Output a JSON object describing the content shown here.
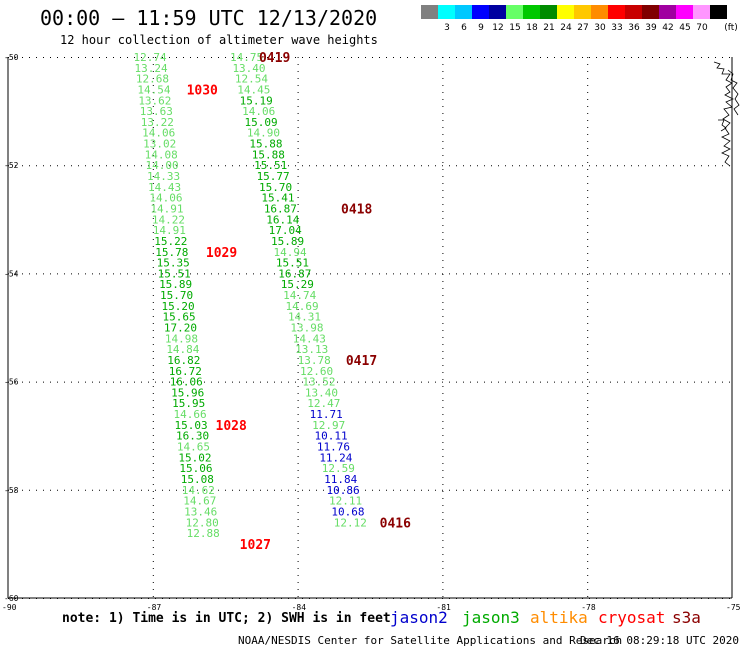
{
  "header": {
    "title": "00:00 – 11:59 UTC 12/13/2020",
    "subtitle": "12 hour collection of altimeter wave heights"
  },
  "color_scale": {
    "unit": "(ft)",
    "entries": [
      {
        "label": "",
        "color": "#808080"
      },
      {
        "label": "3",
        "color": "#00ffff"
      },
      {
        "label": "6",
        "color": "#00c8ff"
      },
      {
        "label": "9",
        "color": "#0000ff"
      },
      {
        "label": "12",
        "color": "#0000a0"
      },
      {
        "label": "15",
        "color": "#66ff66"
      },
      {
        "label": "18",
        "color": "#00c800"
      },
      {
        "label": "21",
        "color": "#008c00"
      },
      {
        "label": "24",
        "color": "#ffff00"
      },
      {
        "label": "27",
        "color": "#ffc800"
      },
      {
        "label": "30",
        "color": "#ff8c00"
      },
      {
        "label": "33",
        "color": "#ff0000"
      },
      {
        "label": "36",
        "color": "#c80000"
      },
      {
        "label": "39",
        "color": "#800000"
      },
      {
        "label": "42",
        "color": "#a000a0"
      },
      {
        "label": "45",
        "color": "#ff00ff"
      },
      {
        "label": "70",
        "color": "#ff96ff"
      },
      {
        "label": "",
        "color": "#000000"
      }
    ]
  },
  "axes": {
    "lat_labels": [
      "-50",
      "-52",
      "-54",
      "-56",
      "-58",
      "-60"
    ],
    "lon_labels": [
      "-90",
      "-87",
      "-84",
      "-81",
      "-78",
      "-75"
    ]
  },
  "colors": {
    "light_green": "#66dd66",
    "green": "#00aa00",
    "blue": "#0000cc",
    "red": "#ff0000",
    "dark_red": "#8b0000",
    "orange": "#ff8c00",
    "black": "#000000"
  },
  "tracks": [
    {
      "name": "track-1030",
      "points": [
        {
          "lon": -87.4,
          "lat": -50.0,
          "v": "12.74",
          "c": "light_green"
        },
        {
          "lon": -87.38,
          "lat": -50.2,
          "v": "13.24",
          "c": "light_green"
        },
        {
          "lon": -87.35,
          "lat": -50.4,
          "v": "12.68",
          "c": "light_green"
        },
        {
          "lon": -87.32,
          "lat": -50.6,
          "v": "14.54",
          "c": "light_green"
        },
        {
          "lon": -87.3,
          "lat": -50.8,
          "v": "13.62",
          "c": "light_green"
        },
        {
          "lon": -87.27,
          "lat": -51.0,
          "v": "13.63",
          "c": "light_green"
        },
        {
          "lon": -87.25,
          "lat": -51.2,
          "v": "13.22",
          "c": "light_green"
        },
        {
          "lon": -87.22,
          "lat": -51.4,
          "v": "14.06",
          "c": "light_green"
        },
        {
          "lon": -87.2,
          "lat": -51.6,
          "v": "13.02",
          "c": "light_green"
        },
        {
          "lon": -87.17,
          "lat": -51.8,
          "v": "14.08",
          "c": "light_green"
        },
        {
          "lon": -87.15,
          "lat": -52.0,
          "v": "14.00",
          "c": "light_green"
        },
        {
          "lon": -87.12,
          "lat": -52.2,
          "v": "14.33",
          "c": "light_green"
        },
        {
          "lon": -87.1,
          "lat": -52.4,
          "v": "14.43",
          "c": "light_green"
        },
        {
          "lon": -87.07,
          "lat": -52.6,
          "v": "14.06",
          "c": "light_green"
        },
        {
          "lon": -87.05,
          "lat": -52.8,
          "v": "14.91",
          "c": "light_green"
        },
        {
          "lon": -87.02,
          "lat": -53.0,
          "v": "14.22",
          "c": "light_green"
        },
        {
          "lon": -87.0,
          "lat": -53.2,
          "v": "14.91",
          "c": "light_green"
        },
        {
          "lon": -86.97,
          "lat": -53.4,
          "v": "15.22",
          "c": "green"
        },
        {
          "lon": -86.95,
          "lat": -53.6,
          "v": "15.78",
          "c": "green"
        },
        {
          "lon": -86.92,
          "lat": -53.8,
          "v": "15.35",
          "c": "green"
        },
        {
          "lon": -86.9,
          "lat": -54.0,
          "v": "15.51",
          "c": "green"
        },
        {
          "lon": -86.87,
          "lat": -54.2,
          "v": "15.89",
          "c": "green"
        },
        {
          "lon": -86.85,
          "lat": -54.4,
          "v": "15.70",
          "c": "green"
        },
        {
          "lon": -86.82,
          "lat": -54.6,
          "v": "15.20",
          "c": "green"
        },
        {
          "lon": -86.8,
          "lat": -54.8,
          "v": "15.65",
          "c": "green"
        },
        {
          "lon": -86.77,
          "lat": -55.0,
          "v": "17.20",
          "c": "green"
        },
        {
          "lon": -86.75,
          "lat": -55.2,
          "v": "14.98",
          "c": "light_green"
        },
        {
          "lon": -86.72,
          "lat": -55.4,
          "v": "14.84",
          "c": "light_green"
        },
        {
          "lon": -86.7,
          "lat": -55.6,
          "v": "16.82",
          "c": "green"
        },
        {
          "lon": -86.67,
          "lat": -55.8,
          "v": "16.72",
          "c": "green"
        },
        {
          "lon": -86.65,
          "lat": -56.0,
          "v": "16.06",
          "c": "green"
        },
        {
          "lon": -86.62,
          "lat": -56.2,
          "v": "15.96",
          "c": "green"
        },
        {
          "lon": -86.6,
          "lat": -56.4,
          "v": "15.95",
          "c": "green"
        },
        {
          "lon": -86.57,
          "lat": -56.6,
          "v": "14.66",
          "c": "light_green"
        },
        {
          "lon": -86.55,
          "lat": -56.8,
          "v": "15.03",
          "c": "green"
        },
        {
          "lon": -86.52,
          "lat": -57.0,
          "v": "16.30",
          "c": "green"
        },
        {
          "lon": -86.5,
          "lat": -57.2,
          "v": "14.65",
          "c": "light_green"
        },
        {
          "lon": -86.47,
          "lat": -57.4,
          "v": "15.02",
          "c": "green"
        },
        {
          "lon": -86.45,
          "lat": -57.6,
          "v": "15.06",
          "c": "green"
        },
        {
          "lon": -86.42,
          "lat": -57.8,
          "v": "15.08",
          "c": "green"
        },
        {
          "lon": -86.4,
          "lat": -58.0,
          "v": "14.62",
          "c": "light_green"
        },
        {
          "lon": -86.37,
          "lat": -58.2,
          "v": "14.67",
          "c": "light_green"
        },
        {
          "lon": -86.35,
          "lat": -58.4,
          "v": "13.46",
          "c": "light_green"
        },
        {
          "lon": -86.32,
          "lat": -58.6,
          "v": "12.80",
          "c": "light_green"
        },
        {
          "lon": -86.3,
          "lat": -58.8,
          "v": "12.88",
          "c": "light_green"
        }
      ]
    },
    {
      "name": "track-0419",
      "points": [
        {
          "lon": -85.4,
          "lat": -50.0,
          "v": "14.75",
          "c": "light_green"
        },
        {
          "lon": -85.35,
          "lat": -50.2,
          "v": "13.40",
          "c": "light_green"
        },
        {
          "lon": -85.3,
          "lat": -50.4,
          "v": "12.54",
          "c": "light_green"
        },
        {
          "lon": -85.25,
          "lat": -50.6,
          "v": "14.45",
          "c": "light_green"
        },
        {
          "lon": -85.2,
          "lat": -50.8,
          "v": "15.19",
          "c": "green"
        },
        {
          "lon": -85.15,
          "lat": -51.0,
          "v": "14.06",
          "c": "light_green"
        },
        {
          "lon": -85.1,
          "lat": -51.2,
          "v": "15.09",
          "c": "green"
        },
        {
          "lon": -85.05,
          "lat": -51.4,
          "v": "14.90",
          "c": "light_green"
        },
        {
          "lon": -85.0,
          "lat": -51.6,
          "v": "15.88",
          "c": "green"
        },
        {
          "lon": -84.95,
          "lat": -51.8,
          "v": "15.88",
          "c": "green"
        },
        {
          "lon": -84.9,
          "lat": -52.0,
          "v": "15.51",
          "c": "green"
        },
        {
          "lon": -84.85,
          "lat": -52.2,
          "v": "15.77",
          "c": "green"
        },
        {
          "lon": -84.8,
          "lat": -52.4,
          "v": "15.70",
          "c": "green"
        },
        {
          "lon": -84.75,
          "lat": -52.6,
          "v": "15.41",
          "c": "green"
        },
        {
          "lon": -84.7,
          "lat": -52.8,
          "v": "16.87",
          "c": "green"
        },
        {
          "lon": -84.65,
          "lat": -53.0,
          "v": "16.14",
          "c": "green"
        },
        {
          "lon": -84.6,
          "lat": -53.2,
          "v": "17.04",
          "c": "green"
        },
        {
          "lon": -84.55,
          "lat": -53.4,
          "v": "15.89",
          "c": "green"
        },
        {
          "lon": -84.5,
          "lat": -53.6,
          "v": "14.94",
          "c": "light_green"
        },
        {
          "lon": -84.45,
          "lat": -53.8,
          "v": "15.51",
          "c": "green"
        },
        {
          "lon": -84.4,
          "lat": -54.0,
          "v": "16.87",
          "c": "green"
        },
        {
          "lon": -84.35,
          "lat": -54.2,
          "v": "15.29",
          "c": "green"
        },
        {
          "lon": -84.3,
          "lat": -54.4,
          "v": "14.74",
          "c": "light_green"
        },
        {
          "lon": -84.25,
          "lat": -54.6,
          "v": "14.69",
          "c": "light_green"
        },
        {
          "lon": -84.2,
          "lat": -54.8,
          "v": "14.31",
          "c": "light_green"
        },
        {
          "lon": -84.15,
          "lat": -55.0,
          "v": "13.98",
          "c": "light_green"
        },
        {
          "lon": -84.1,
          "lat": -55.2,
          "v": "14.43",
          "c": "light_green"
        },
        {
          "lon": -84.05,
          "lat": -55.4,
          "v": "13.13",
          "c": "light_green"
        },
        {
          "lon": -84.0,
          "lat": -55.6,
          "v": "13.78",
          "c": "light_green"
        },
        {
          "lon": -83.95,
          "lat": -55.8,
          "v": "12.60",
          "c": "light_green"
        },
        {
          "lon": -83.9,
          "lat": -56.0,
          "v": "13.52",
          "c": "light_green"
        },
        {
          "lon": -83.85,
          "lat": -56.2,
          "v": "13.40",
          "c": "light_green"
        },
        {
          "lon": -83.8,
          "lat": -56.4,
          "v": "12.47",
          "c": "light_green"
        },
        {
          "lon": -83.75,
          "lat": -56.6,
          "v": "11.71",
          "c": "blue"
        },
        {
          "lon": -83.7,
          "lat": -56.8,
          "v": "12.97",
          "c": "light_green"
        },
        {
          "lon": -83.65,
          "lat": -57.0,
          "v": "10.11",
          "c": "blue"
        },
        {
          "lon": -83.6,
          "lat": -57.2,
          "v": "11.76",
          "c": "blue"
        },
        {
          "lon": -83.55,
          "lat": -57.4,
          "v": "11.24",
          "c": "blue"
        },
        {
          "lon": -83.5,
          "lat": -57.6,
          "v": "12.59",
          "c": "light_green"
        },
        {
          "lon": -83.45,
          "lat": -57.8,
          "v": "11.84",
          "c": "blue"
        },
        {
          "lon": -83.4,
          "lat": -58.0,
          "v": "10.86",
          "c": "blue"
        },
        {
          "lon": -83.35,
          "lat": -58.2,
          "v": "12.11",
          "c": "light_green"
        },
        {
          "lon": -83.3,
          "lat": -58.4,
          "v": "10.68",
          "c": "blue"
        },
        {
          "lon": -83.25,
          "lat": -58.6,
          "v": "12.12",
          "c": "light_green"
        }
      ]
    }
  ],
  "time_labels": [
    {
      "text": "0419",
      "lon": -84.8,
      "lat": -50.0,
      "c": "dark_red"
    },
    {
      "text": "1030",
      "lon": -86.3,
      "lat": -50.6,
      "c": "red"
    },
    {
      "text": "0418",
      "lon": -83.1,
      "lat": -52.8,
      "c": "dark_red"
    },
    {
      "text": "1029",
      "lon": -85.9,
      "lat": -53.6,
      "c": "red"
    },
    {
      "text": "0417",
      "lon": -83.0,
      "lat": -55.6,
      "c": "dark_red"
    },
    {
      "text": "1028",
      "lon": -85.7,
      "lat": -56.8,
      "c": "red"
    },
    {
      "text": "1027",
      "lon": -85.2,
      "lat": -59.0,
      "c": "red"
    },
    {
      "text": "0416",
      "lon": -82.3,
      "lat": -58.6,
      "c": "dark_red"
    }
  ],
  "footer": {
    "note": "note: 1) Time is in UTC; 2) SWH is in feet",
    "legend": [
      {
        "label": "jason2",
        "color": "#0000cc"
      },
      {
        "label": "jason3",
        "color": "#00aa00"
      },
      {
        "label": "altika",
        "color": "#ff8c00"
      },
      {
        "label": "cryosat",
        "color": "#ff0000"
      },
      {
        "label": "s3a",
        "color": "#8b0000"
      }
    ],
    "credit": "NOAA/NESDIS Center for Satellite Applications and Research",
    "timestamp": "Dec 16 08:29:18 UTC 2020"
  }
}
